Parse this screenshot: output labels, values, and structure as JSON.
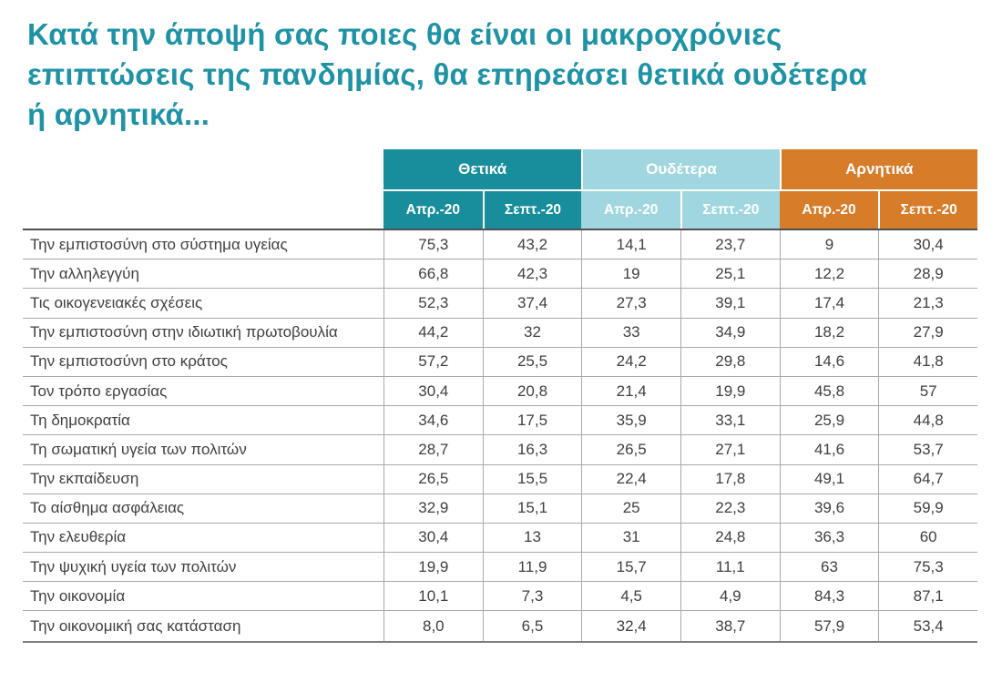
{
  "title": {
    "full": "Κατά την άποψή σας ποιες θα είναι οι μακροχρόνιες επιπτώσεις της πανδημίας, θα επηρεάσει θετικά ουδέτερα ή αρνητικά...",
    "lines": [
      "Κατά την άποψή σας ποιες θα είναι οι μακροχρόνιες",
      "επιπτώσεις της πανδημίας, θα επηρεάσει θετικά ουδέτερα",
      "ή αρνητικά..."
    ]
  },
  "colors": {
    "title": "#1e93a5",
    "positive": "#188d9b",
    "neutral": "#a0d6df",
    "negative": "#d77c28"
  },
  "table": {
    "groups": [
      {
        "label": "Θετικά",
        "columns": [
          "Απρ.-20",
          "Σεπτ.-20"
        ]
      },
      {
        "label": "Ουδέτερα",
        "columns": [
          "Απρ.-20",
          "Σεπτ.-20"
        ]
      },
      {
        "label": "Αρνητικά",
        "columns": [
          "Απρ.-20",
          "Σεπτ.-20"
        ]
      }
    ],
    "rows": [
      {
        "label": "Την εμπιστοσύνη στο σύστημα υγείας",
        "values": [
          "75,3",
          "43,2",
          "14,1",
          "23,7",
          "9",
          "30,4"
        ]
      },
      {
        "label": "Την αλληλεγγύη",
        "values": [
          "66,8",
          "42,3",
          "19",
          "25,1",
          "12,2",
          "28,9"
        ]
      },
      {
        "label": "Τις οικογενειακές σχέσεις",
        "values": [
          "52,3",
          "37,4",
          "27,3",
          "39,1",
          "17,4",
          "21,3"
        ]
      },
      {
        "label": "Την εμπιστοσύνη στην ιδιωτική πρωτοβουλία",
        "values": [
          "44,2",
          "32",
          "33",
          "34,9",
          "18,2",
          "27,9"
        ]
      },
      {
        "label": "Την εμπιστοσύνη στο κράτος",
        "values": [
          "57,2",
          "25,5",
          "24,2",
          "29,8",
          "14,6",
          "41,8"
        ]
      },
      {
        "label": "Τον τρόπο εργασίας",
        "values": [
          "30,4",
          "20,8",
          "21,4",
          "19,9",
          "45,8",
          "57"
        ]
      },
      {
        "label": "Τη δημοκρατία",
        "values": [
          "34,6",
          "17,5",
          "35,9",
          "33,1",
          "25,9",
          "44,8"
        ]
      },
      {
        "label": "Τη σωματική υγεία των πολιτών",
        "values": [
          "28,7",
          "16,3",
          "26,5",
          "27,1",
          "41,6",
          "53,7"
        ]
      },
      {
        "label": "Την εκπαίδευση",
        "values": [
          "26,5",
          "15,5",
          "22,4",
          "17,8",
          "49,1",
          "64,7"
        ]
      },
      {
        "label": "Το αίσθημα ασφάλειας",
        "values": [
          "32,9",
          "15,1",
          "25",
          "22,3",
          "39,6",
          "59,9"
        ]
      },
      {
        "label": "Την ελευθερία",
        "values": [
          "30,4",
          "13",
          "31",
          "24,8",
          "36,3",
          "60"
        ]
      },
      {
        "label": "Την ψυχική  υγεία των πολιτών",
        "values": [
          "19,9",
          "11,9",
          "15,7",
          "11,1",
          "63",
          "75,3"
        ]
      },
      {
        "label": "Την οικονομία",
        "values": [
          "10,1",
          "7,3",
          "4,5",
          "4,9",
          "84,3",
          "87,1"
        ]
      },
      {
        "label": "Την οικονομική σας κατάσταση",
        "values": [
          "8,0",
          "6,5",
          "32,4",
          "38,7",
          "57,9",
          "53,4"
        ]
      }
    ]
  },
  "chart_data": {
    "type": "table",
    "title": "Κατά την άποψή σας ποιες θα είναι οι μακροχρόνιες επιπτώσεις της πανδημίας, θα επηρεάσει θετικά ουδέτερα ή αρνητικά...",
    "categories": [
      "Την εμπιστοσύνη στο σύστημα υγείας",
      "Την αλληλεγγύη",
      "Τις οικογενειακές σχέσεις",
      "Την εμπιστοσύνη στην ιδιωτική πρωτοβουλία",
      "Την εμπιστοσύνη στο κράτος",
      "Τον τρόπο εργασίας",
      "Τη δημοκρατία",
      "Τη σωματική υγεία των πολιτών",
      "Την εκπαίδευση",
      "Το αίσθημα ασφάλειας",
      "Την ελευθερία",
      "Την ψυχική  υγεία των πολιτών",
      "Την οικονομία",
      "Την οικονομική σας κατάσταση"
    ],
    "series": [
      {
        "name": "Θετικά Απρ.-20",
        "values": [
          75.3,
          66.8,
          52.3,
          44.2,
          57.2,
          30.4,
          34.6,
          28.7,
          26.5,
          32.9,
          30.4,
          19.9,
          10.1,
          8.0
        ]
      },
      {
        "name": "Θετικά Σεπτ.-20",
        "values": [
          43.2,
          42.3,
          37.4,
          32,
          25.5,
          20.8,
          17.5,
          16.3,
          15.5,
          15.1,
          13,
          11.9,
          7.3,
          6.5
        ]
      },
      {
        "name": "Ουδέτερα Απρ.-20",
        "values": [
          14.1,
          19,
          27.3,
          33,
          24.2,
          21.4,
          35.9,
          26.5,
          22.4,
          25,
          31,
          15.7,
          4.5,
          32.4
        ]
      },
      {
        "name": "Ουδέτερα Σεπτ.-20",
        "values": [
          23.7,
          25.1,
          39.1,
          34.9,
          29.8,
          19.9,
          33.1,
          27.1,
          17.8,
          22.3,
          24.8,
          11.1,
          4.9,
          38.7
        ]
      },
      {
        "name": "Αρνητικά Απρ.-20",
        "values": [
          9,
          12.2,
          17.4,
          18.2,
          14.6,
          45.8,
          25.9,
          41.6,
          49.1,
          39.6,
          36.3,
          63,
          84.3,
          57.9
        ]
      },
      {
        "name": "Αρνητικά Σεπτ.-20",
        "values": [
          30.4,
          28.9,
          21.3,
          27.9,
          41.8,
          57,
          44.8,
          53.7,
          64.7,
          59.9,
          60,
          75.3,
          87.1,
          53.4
        ]
      }
    ],
    "legend_position": "top",
    "grid": true
  }
}
